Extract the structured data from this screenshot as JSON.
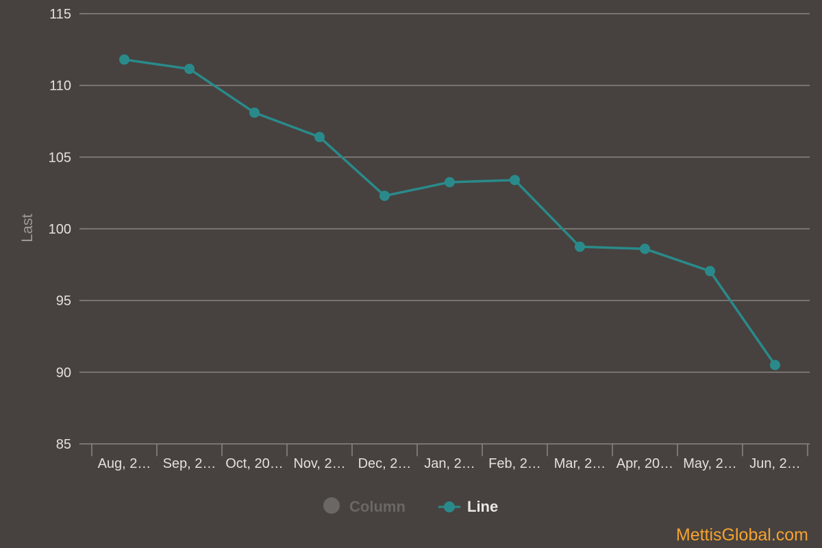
{
  "colors": {
    "background": "#47423f",
    "gridline": "#8a8682",
    "series_line": "#2a8a8b",
    "legend_inactive": "#6b6764",
    "watermark": "#f7a22f"
  },
  "legend": {
    "items": [
      {
        "label": "Column",
        "active": false,
        "icon": "circle-icon"
      },
      {
        "label": "Line",
        "active": true,
        "icon": "line-marker-icon"
      }
    ]
  },
  "watermark": "MettisGlobal.com",
  "chart_data": {
    "type": "line",
    "ylabel": "Last",
    "ylim": [
      85,
      115
    ],
    "yticks": [
      115,
      110,
      105,
      100,
      95,
      90,
      85
    ],
    "grid": true,
    "legend_position": "bottom-center",
    "categories": [
      "Aug, 2…",
      "Sep, 2…",
      "Oct, 20…",
      "Nov, 2…",
      "Dec, 2…",
      "Jan, 2…",
      "Feb, 2…",
      "Mar, 2…",
      "Apr, 20…",
      "May, 2…",
      "Jun, 2…"
    ],
    "series": [
      {
        "name": "Line",
        "values": [
          111.8,
          111.15,
          108.1,
          106.4,
          102.3,
          103.25,
          103.4,
          98.75,
          98.6,
          97.05,
          90.5
        ]
      }
    ]
  }
}
